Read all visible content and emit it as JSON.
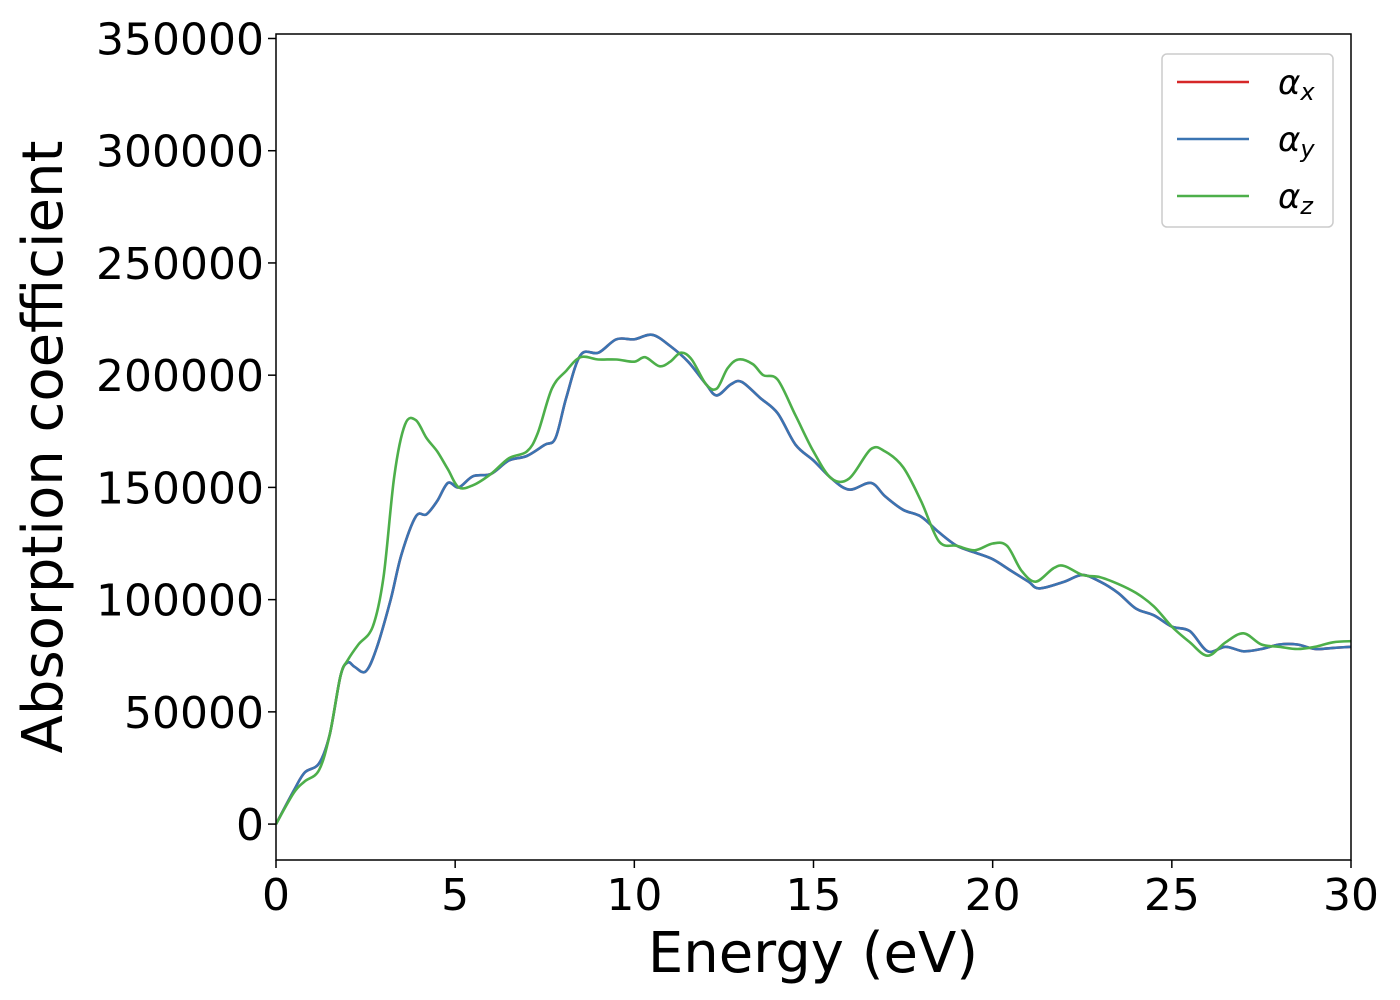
{
  "chart_data": {
    "type": "line",
    "title": "",
    "xlabel": "Energy (eV)",
    "ylabel": "Absorption coefficient",
    "xlim": [
      0,
      30
    ],
    "ylim": [
      -16000,
      352000
    ],
    "xticks": [
      0,
      5,
      10,
      15,
      20,
      25,
      30
    ],
    "yticks": [
      0,
      50000,
      100000,
      150000,
      200000,
      250000,
      300000,
      350000
    ],
    "grid": false,
    "legend_position": "top-right",
    "legend": [
      {
        "base": "α",
        "sub": "x",
        "color": "#d62728"
      },
      {
        "base": "α",
        "sub": "y",
        "color": "#3a74b2"
      },
      {
        "base": "α",
        "sub": "z",
        "color": "#4daf4a"
      }
    ],
    "series": [
      {
        "name": "αx",
        "color": "#d62728",
        "points": [
          [
            0,
            0
          ],
          [
            0.5,
            15000
          ],
          [
            0.8,
            23000
          ],
          [
            1.2,
            27000
          ],
          [
            1.5,
            40000
          ],
          [
            1.8,
            66000
          ],
          [
            2.0,
            72000
          ],
          [
            2.2,
            70000
          ],
          [
            2.5,
            68000
          ],
          [
            2.8,
            78000
          ],
          [
            3.2,
            100000
          ],
          [
            3.5,
            120000
          ],
          [
            3.9,
            137000
          ],
          [
            4.2,
            138000
          ],
          [
            4.5,
            144000
          ],
          [
            4.8,
            152000
          ],
          [
            5.1,
            150000
          ],
          [
            5.5,
            155000
          ],
          [
            6.0,
            156000
          ],
          [
            6.5,
            162000
          ],
          [
            7.0,
            164000
          ],
          [
            7.5,
            169000
          ],
          [
            7.8,
            172000
          ],
          [
            8.1,
            190000
          ],
          [
            8.5,
            209000
          ],
          [
            9.0,
            210000
          ],
          [
            9.5,
            216000
          ],
          [
            10.0,
            216000
          ],
          [
            10.5,
            218000
          ],
          [
            11.0,
            213000
          ],
          [
            11.5,
            206000
          ],
          [
            12.0,
            196000
          ],
          [
            12.3,
            191000
          ],
          [
            12.7,
            196000
          ],
          [
            13.0,
            197000
          ],
          [
            13.5,
            190000
          ],
          [
            14.0,
            183000
          ],
          [
            14.5,
            169000
          ],
          [
            15.0,
            162000
          ],
          [
            15.5,
            154000
          ],
          [
            16.0,
            149000
          ],
          [
            16.6,
            152000
          ],
          [
            17.0,
            146000
          ],
          [
            17.5,
            140000
          ],
          [
            18.0,
            137000
          ],
          [
            18.5,
            130000
          ],
          [
            19.0,
            124000
          ],
          [
            19.5,
            121000
          ],
          [
            20.0,
            118000
          ],
          [
            20.5,
            113000
          ],
          [
            21.0,
            108000
          ],
          [
            21.3,
            105000
          ],
          [
            22.0,
            108000
          ],
          [
            22.5,
            111000
          ],
          [
            23.0,
            108000
          ],
          [
            23.5,
            103000
          ],
          [
            24.0,
            96000
          ],
          [
            24.5,
            93000
          ],
          [
            25.0,
            88000
          ],
          [
            25.5,
            86000
          ],
          [
            26.0,
            77000
          ],
          [
            26.5,
            79000
          ],
          [
            27.0,
            77000
          ],
          [
            27.5,
            78000
          ],
          [
            28.0,
            80000
          ],
          [
            28.5,
            80000
          ],
          [
            29.0,
            78000
          ],
          [
            29.5,
            78500
          ],
          [
            30.0,
            79000
          ]
        ]
      },
      {
        "name": "αy",
        "color": "#3a74b2",
        "points": [
          [
            0,
            0
          ],
          [
            0.5,
            15000
          ],
          [
            0.8,
            23000
          ],
          [
            1.2,
            27000
          ],
          [
            1.5,
            40000
          ],
          [
            1.8,
            66000
          ],
          [
            2.0,
            72000
          ],
          [
            2.2,
            70000
          ],
          [
            2.5,
            68000
          ],
          [
            2.8,
            78000
          ],
          [
            3.2,
            100000
          ],
          [
            3.5,
            120000
          ],
          [
            3.9,
            137000
          ],
          [
            4.2,
            138000
          ],
          [
            4.5,
            144000
          ],
          [
            4.8,
            152000
          ],
          [
            5.1,
            150000
          ],
          [
            5.5,
            155000
          ],
          [
            6.0,
            156000
          ],
          [
            6.5,
            162000
          ],
          [
            7.0,
            164000
          ],
          [
            7.5,
            169000
          ],
          [
            7.8,
            172000
          ],
          [
            8.1,
            190000
          ],
          [
            8.5,
            209000
          ],
          [
            9.0,
            210000
          ],
          [
            9.5,
            216000
          ],
          [
            10.0,
            216000
          ],
          [
            10.5,
            218000
          ],
          [
            11.0,
            213000
          ],
          [
            11.5,
            206000
          ],
          [
            12.0,
            196000
          ],
          [
            12.3,
            191000
          ],
          [
            12.7,
            196000
          ],
          [
            13.0,
            197000
          ],
          [
            13.5,
            190000
          ],
          [
            14.0,
            183000
          ],
          [
            14.5,
            169000
          ],
          [
            15.0,
            162000
          ],
          [
            15.5,
            154000
          ],
          [
            16.0,
            149000
          ],
          [
            16.6,
            152000
          ],
          [
            17.0,
            146000
          ],
          [
            17.5,
            140000
          ],
          [
            18.0,
            137000
          ],
          [
            18.5,
            130000
          ],
          [
            19.0,
            124000
          ],
          [
            19.5,
            121000
          ],
          [
            20.0,
            118000
          ],
          [
            20.5,
            113000
          ],
          [
            21.0,
            108000
          ],
          [
            21.3,
            105000
          ],
          [
            22.0,
            108000
          ],
          [
            22.5,
            111000
          ],
          [
            23.0,
            108000
          ],
          [
            23.5,
            103000
          ],
          [
            24.0,
            96000
          ],
          [
            24.5,
            93000
          ],
          [
            25.0,
            88000
          ],
          [
            25.5,
            86000
          ],
          [
            26.0,
            77000
          ],
          [
            26.5,
            79000
          ],
          [
            27.0,
            77000
          ],
          [
            27.5,
            78000
          ],
          [
            28.0,
            80000
          ],
          [
            28.5,
            80000
          ],
          [
            29.0,
            78000
          ],
          [
            29.5,
            78500
          ],
          [
            30.0,
            79000
          ]
        ]
      },
      {
        "name": "αz",
        "color": "#4daf4a",
        "points": [
          [
            0,
            0
          ],
          [
            0.5,
            14000
          ],
          [
            0.8,
            19000
          ],
          [
            1.2,
            24000
          ],
          [
            1.5,
            40000
          ],
          [
            1.8,
            66000
          ],
          [
            2.0,
            73000
          ],
          [
            2.3,
            80000
          ],
          [
            2.7,
            88000
          ],
          [
            3.0,
            110000
          ],
          [
            3.3,
            155000
          ],
          [
            3.6,
            178000
          ],
          [
            3.9,
            180000
          ],
          [
            4.2,
            172000
          ],
          [
            4.5,
            166000
          ],
          [
            4.8,
            158000
          ],
          [
            5.1,
            150000
          ],
          [
            5.5,
            151000
          ],
          [
            6.0,
            156000
          ],
          [
            6.5,
            163000
          ],
          [
            7.0,
            166000
          ],
          [
            7.3,
            174000
          ],
          [
            7.7,
            194000
          ],
          [
            8.1,
            202000
          ],
          [
            8.5,
            208000
          ],
          [
            9.0,
            207000
          ],
          [
            9.5,
            207000
          ],
          [
            10.0,
            206000
          ],
          [
            10.3,
            208000
          ],
          [
            10.7,
            204000
          ],
          [
            11.0,
            206000
          ],
          [
            11.3,
            210000
          ],
          [
            11.6,
            207000
          ],
          [
            12.0,
            196000
          ],
          [
            12.3,
            194000
          ],
          [
            12.6,
            203000
          ],
          [
            12.9,
            207000
          ],
          [
            13.3,
            205000
          ],
          [
            13.6,
            200000
          ],
          [
            14.0,
            198000
          ],
          [
            14.5,
            182000
          ],
          [
            15.0,
            166000
          ],
          [
            15.5,
            154000
          ],
          [
            16.0,
            154000
          ],
          [
            16.6,
            167000
          ],
          [
            17.0,
            166000
          ],
          [
            17.5,
            159000
          ],
          [
            18.0,
            144000
          ],
          [
            18.5,
            126000
          ],
          [
            19.0,
            124000
          ],
          [
            19.5,
            122000
          ],
          [
            20.0,
            125000
          ],
          [
            20.4,
            124000
          ],
          [
            20.8,
            113000
          ],
          [
            21.2,
            108000
          ],
          [
            21.7,
            114000
          ],
          [
            22.0,
            115000
          ],
          [
            22.5,
            111000
          ],
          [
            23.0,
            110000
          ],
          [
            23.5,
            107000
          ],
          [
            24.0,
            103000
          ],
          [
            24.5,
            97000
          ],
          [
            25.0,
            88000
          ],
          [
            25.5,
            81000
          ],
          [
            26.0,
            75000
          ],
          [
            26.5,
            81000
          ],
          [
            27.0,
            85000
          ],
          [
            27.5,
            80000
          ],
          [
            28.0,
            79000
          ],
          [
            28.5,
            78000
          ],
          [
            29.0,
            79000
          ],
          [
            29.5,
            81000
          ],
          [
            30.0,
            81500
          ]
        ]
      }
    ]
  }
}
